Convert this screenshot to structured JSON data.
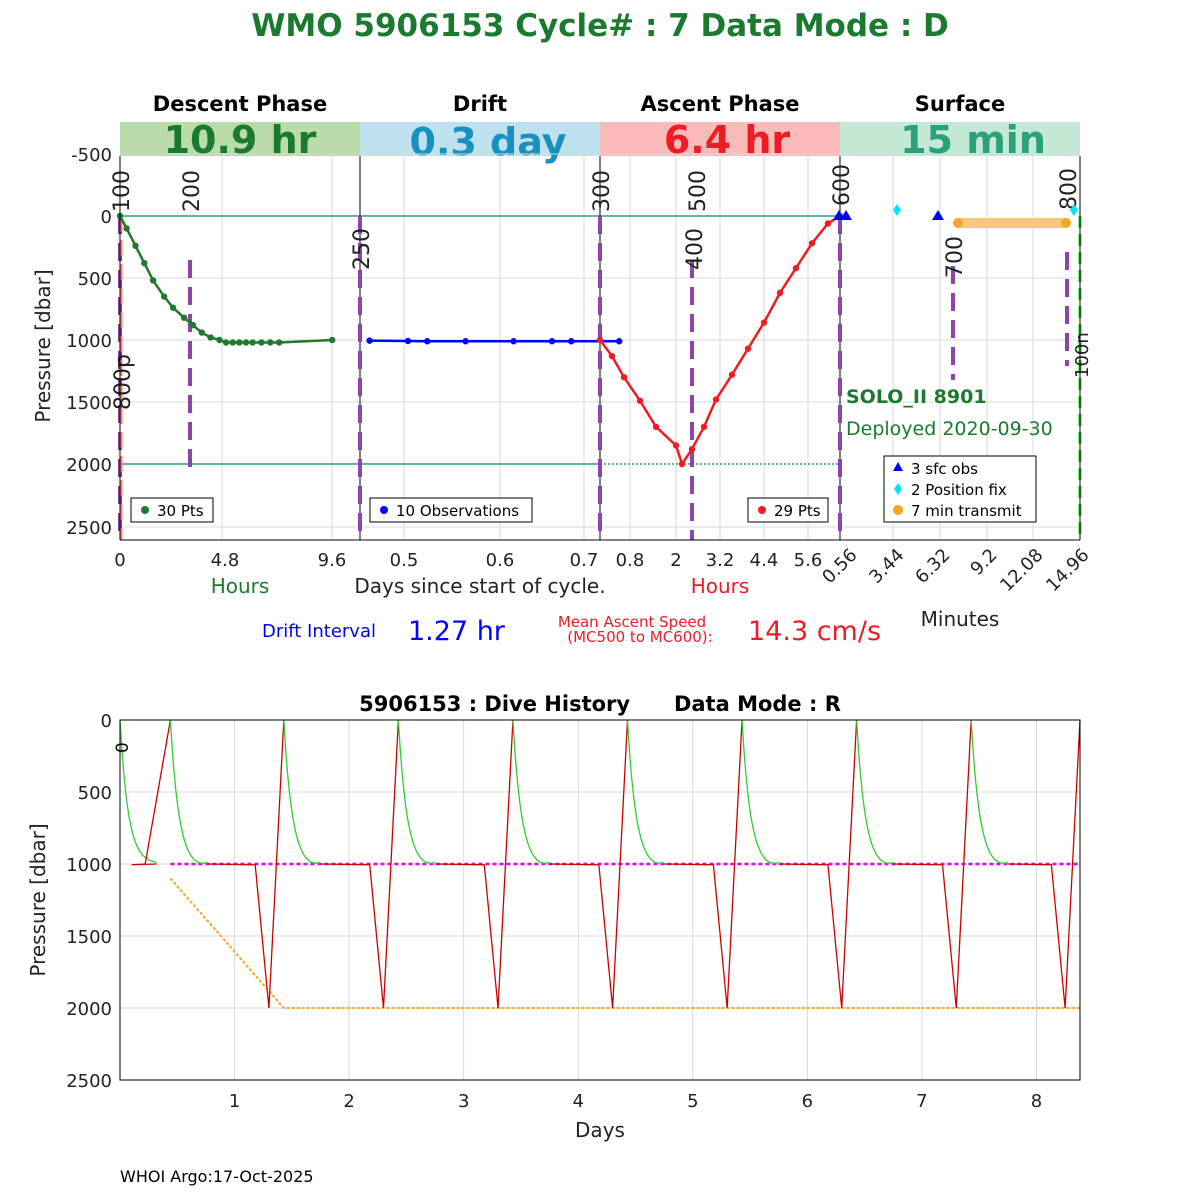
{
  "header": {
    "title": "WMO 5906153    Cycle# : 7    Data Mode : D"
  },
  "phases": [
    {
      "name": "Descent Phase",
      "duration": "10.9 hr",
      "band_color": "#b9dcaa",
      "text_color": "#1a7a2e"
    },
    {
      "name": "Drift",
      "duration": "0.3 day",
      "band_color": "#bde2ee",
      "text_color": "#1890c0"
    },
    {
      "name": "Ascent Phase",
      "duration": "6.4 hr",
      "band_color": "#f9baba",
      "text_color": "#ee1c25"
    },
    {
      "name": "Surface",
      "duration": "15 min",
      "band_color": "#c3e9d5",
      "text_color": "#2aa17a"
    }
  ],
  "top_axis": {
    "ylabel": "Pressure [dbar]",
    "yticks": [
      "-500",
      "0",
      "500",
      "1000",
      "1500",
      "2000",
      "2500"
    ],
    "xlabel_center": "Days since start of cycle.",
    "descent_ticks": [
      "0",
      "4.8",
      "9.6"
    ],
    "descent_unit": "Hours",
    "drift_ticks": [
      "0.5",
      "0.6",
      "0.7"
    ],
    "ascent_ticks": [
      "0.8",
      "2",
      "3.2",
      "4.4",
      "5.6"
    ],
    "ascent_unit": "Hours",
    "surface_ticks": [
      "0.56",
      "3.44",
      "6.32",
      "9.2",
      "12.08",
      "14.96"
    ],
    "surface_unit": "Minutes"
  },
  "mc_labels": {
    "m100": "100",
    "m200": "200",
    "m250": "250",
    "m300": "300",
    "m400": "400",
    "m500": "500",
    "m600": "600",
    "m700": "700",
    "m800": "800",
    "m800p": "800p",
    "m100n": "100n"
  },
  "top_legends": {
    "descent": "30 Pts",
    "drift": "10 Observations",
    "ascent": "29 Pts",
    "surface": [
      "3 sfc obs",
      "2 Position fix",
      "7 min transmit"
    ]
  },
  "float_info": {
    "model": "SOLO_II 8901",
    "deployed": "Deployed 2020-09-30"
  },
  "stats": {
    "drift_label": "Drift Interval",
    "drift_value": "1.27 hr",
    "ascent_label_1": "Mean Ascent Speed",
    "ascent_label_2": "(MC500 to MC600):",
    "ascent_value": "14.3 cm/s"
  },
  "colors": {
    "descent": "#1e7a2e",
    "drift": "#0000ff",
    "ascent": "#ee1c25",
    "marker_purple": "#8e44ad",
    "transmit": "#f5a623",
    "position_fix": "#00e5ff",
    "history_descent": "#33cc33",
    "history_ascent": "#cc0000",
    "park_line": "#ee00ee",
    "profile_line": "#f5a623"
  },
  "chart_data": [
    {
      "type": "line",
      "title": "WMO 5906153    Cycle# : 7    Data Mode : D",
      "ylabel": "Pressure [dbar]",
      "ylim": [
        2600,
        -650
      ],
      "grid": true,
      "series": [
        {
          "name": "30 Pts",
          "segment": "descent",
          "unit": "hours",
          "x": [
            0,
            0.3,
            0.7,
            1.1,
            1.5,
            2.0,
            2.4,
            2.9,
            3.3,
            3.7,
            4.1,
            4.5,
            4.8,
            5.1,
            5.4,
            5.7,
            6.0,
            6.4,
            6.8,
            7.2,
            9.6
          ],
          "y": [
            0,
            100,
            240,
            380,
            520,
            650,
            740,
            820,
            880,
            940,
            980,
            1000,
            1020,
            1020,
            1020,
            1020,
            1020,
            1020,
            1020,
            1020,
            1000
          ]
        },
        {
          "name": "10 Observations",
          "segment": "drift",
          "unit": "days",
          "x": [
            0.46,
            0.5,
            0.52,
            0.56,
            0.61,
            0.65,
            0.67,
            0.72
          ],
          "y": [
            1005,
            1008,
            1010,
            1010,
            1010,
            1010,
            1010,
            1010
          ]
        },
        {
          "name": "29 Pts",
          "segment": "ascent",
          "unit": "hours",
          "x": [
            0.0,
            0.3,
            0.6,
            1.0,
            1.4,
            1.9,
            2.05,
            2.3,
            2.6,
            2.9,
            3.3,
            3.7,
            4.1,
            4.5,
            4.9,
            5.3,
            5.7,
            6.0
          ],
          "y": [
            1000,
            1130,
            1300,
            1490,
            1700,
            1850,
            2000,
            1880,
            1700,
            1480,
            1280,
            1070,
            860,
            620,
            420,
            220,
            60,
            0
          ]
        },
        {
          "name": "3 sfc obs",
          "segment": "surface",
          "unit": "minutes",
          "x": [
            0.0,
            0.3,
            6.32
          ],
          "y": [
            0,
            0,
            0
          ]
        },
        {
          "name": "2 Position fix",
          "segment": "surface",
          "unit": "minutes",
          "x": [
            3.44,
            14.9
          ],
          "y": [
            -50,
            -50
          ]
        },
        {
          "name": "7 min transmit",
          "segment": "surface",
          "unit": "minutes",
          "x": [
            6.9,
            14.2
          ],
          "y": [
            50,
            50
          ]
        }
      ]
    },
    {
      "type": "line",
      "title": "5906153 : Dive History      Data Mode : R",
      "xlabel": "Days",
      "ylabel": "Pressure [dbar]",
      "xlim": [
        0,
        8.38
      ],
      "ylim": [
        2500,
        0
      ],
      "xticks": [
        "1",
        "2",
        "3",
        "4",
        "5",
        "6",
        "7",
        "8"
      ],
      "yticks": [
        "0",
        "500",
        "1000",
        "1500",
        "2000",
        "2500"
      ],
      "cycle_start_label": "0",
      "cycle_days": [
        0.0,
        0.44,
        1.43,
        2.43,
        3.43,
        4.43,
        5.43,
        6.43,
        7.43
      ],
      "cycle_max_pressure": [
        1000,
        2000,
        2000,
        2000,
        2000,
        2000,
        2000,
        2000,
        2000
      ],
      "park_pressure": 1000,
      "profile_target": {
        "x": [
          0.44,
          1.43,
          8.38
        ],
        "y": [
          1100,
          2000,
          2000
        ]
      }
    }
  ],
  "footer": "WHOI Argo:17-Oct-2025"
}
